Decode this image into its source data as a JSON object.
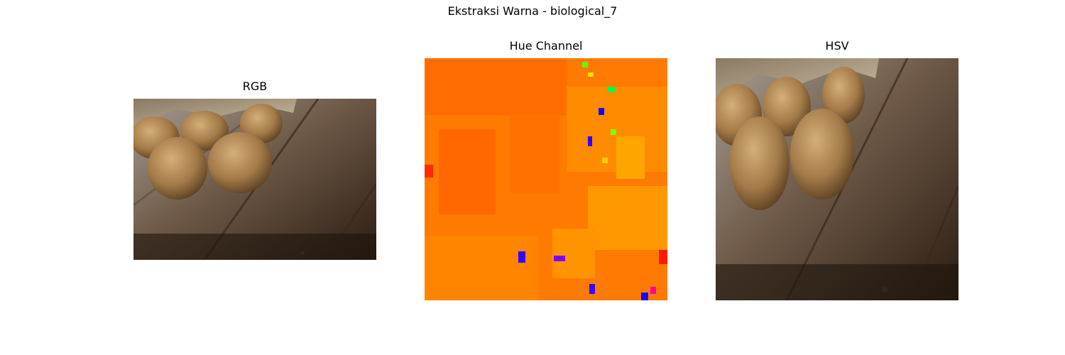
{
  "figure": {
    "suptitle": "Ekstraksi Warna - biological_7"
  },
  "panels": [
    {
      "title": "RGB",
      "content": "photo of potatoes on a wooden table"
    },
    {
      "title": "Hue Channel",
      "content": "hue channel visualized with a rainbow colormap, mostly orange"
    },
    {
      "title": "HSV",
      "content": "stretched photo of potatoes on a wooden table"
    }
  ]
}
